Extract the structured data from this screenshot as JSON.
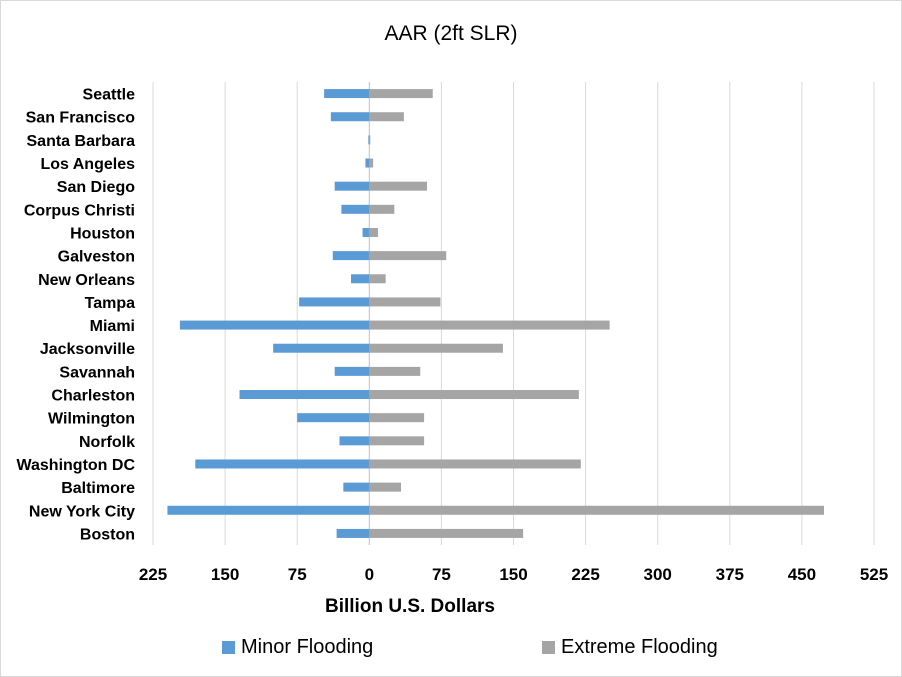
{
  "chart_data": {
    "type": "bar",
    "orientation": "horizontal",
    "title": "AAR (2ft SLR)",
    "xlabel": "Billion U.S. Dollars",
    "ylabel": "",
    "categories": [
      "Seattle",
      "San Francisco",
      "Santa Barbara",
      "Los Angeles",
      "San Diego",
      "Corpus Christi",
      "Houston",
      "Galveston",
      "New Orleans",
      "Tampa",
      "Miami",
      "Jacksonville",
      "Savannah",
      "Charleston",
      "Wilmington",
      "Norfolk",
      "Washington DC",
      "Baltimore",
      "New York City",
      "Boston"
    ],
    "series": [
      {
        "name": "Minor Flooding",
        "color": "#5b9bd5",
        "direction": "left",
        "values": [
          47,
          40,
          1,
          4,
          36,
          29,
          7,
          38,
          19,
          73,
          197,
          100,
          36,
          135,
          75,
          31,
          181,
          27,
          210,
          34
        ]
      },
      {
        "name": "Extreme Flooding",
        "color": "#a5a5a5",
        "direction": "right",
        "values": [
          66,
          36,
          1,
          4,
          60,
          26,
          9,
          80,
          17,
          74,
          250,
          139,
          53,
          218,
          57,
          57,
          220,
          33,
          473,
          160
        ]
      }
    ],
    "xlim": [
      -225,
      525
    ],
    "tick_values": [
      -225,
      -150,
      -75,
      0,
      75,
      150,
      225,
      300,
      375,
      450,
      525
    ],
    "tick_labels": [
      "225",
      "150",
      "75",
      "0",
      "75",
      "150",
      "225",
      "300",
      "375",
      "450",
      "525"
    ],
    "grid": true,
    "legend": "bottom"
  }
}
